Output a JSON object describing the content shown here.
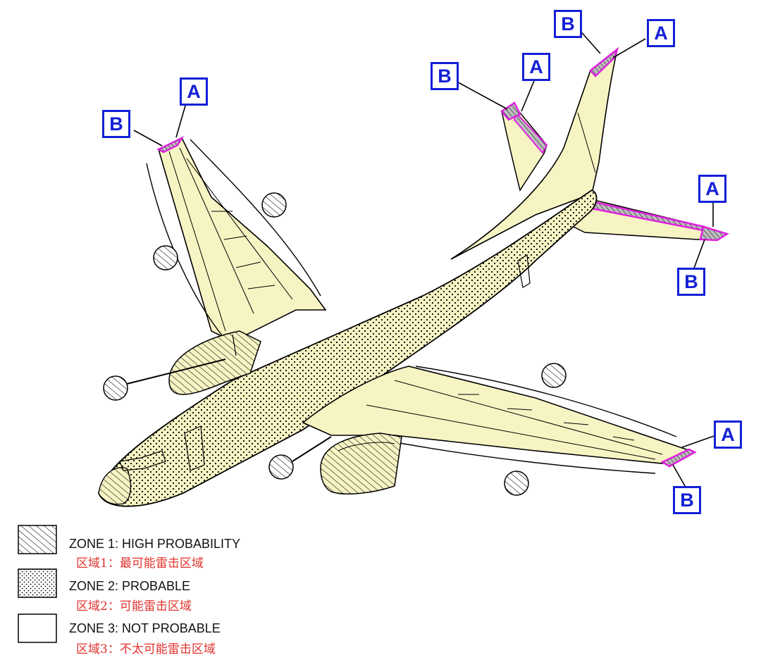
{
  "callouts": {
    "label_a": "A",
    "label_b": "B"
  },
  "legend": [
    {
      "pattern": "hatch",
      "en": "ZONE 1: HIGH PROBABILITY",
      "cn": "区域1：最可能雷击区域"
    },
    {
      "pattern": "dots",
      "en": "ZONE 2: PROBABLE",
      "cn": "区域2：可能雷击区域"
    },
    {
      "pattern": "blank",
      "en": "ZONE 3: NOT PROBABLE",
      "cn": "区域3：不太可能雷击区域"
    }
  ],
  "colors": {
    "aircraft_fill": "#f7f4c4",
    "outline": "#000000",
    "callout_blue": "#1420d6",
    "highlight_magenta": "#e020e0",
    "chinese_text": "#e0332e"
  }
}
